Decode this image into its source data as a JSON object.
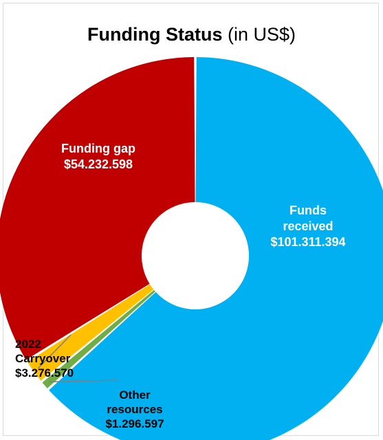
{
  "chart_data": {
    "type": "pie",
    "title_bold": "Funding Status",
    "title_suffix": "(in US$)",
    "slices": [
      {
        "label_lines": [
          "Funds",
          "received",
          "$101.311.394"
        ],
        "value": 101311394,
        "color": "#00b0f0",
        "label_color": "#ffffff"
      },
      {
        "label_lines": [
          "Other",
          "resources",
          "$1.296.597"
        ],
        "value": 1296597,
        "color": "#70ad47",
        "label_color": "#000000"
      },
      {
        "label_lines": [
          "2022",
          "Carryover",
          "$3.276.570"
        ],
        "value": 3276570,
        "color": "#ffc000",
        "label_color": "#000000"
      },
      {
        "label_lines": [
          "Funding gap",
          "$54.232.598"
        ],
        "value": 54232598,
        "color": "#c00000",
        "label_color": "#ffffff"
      }
    ],
    "legend": "none"
  }
}
